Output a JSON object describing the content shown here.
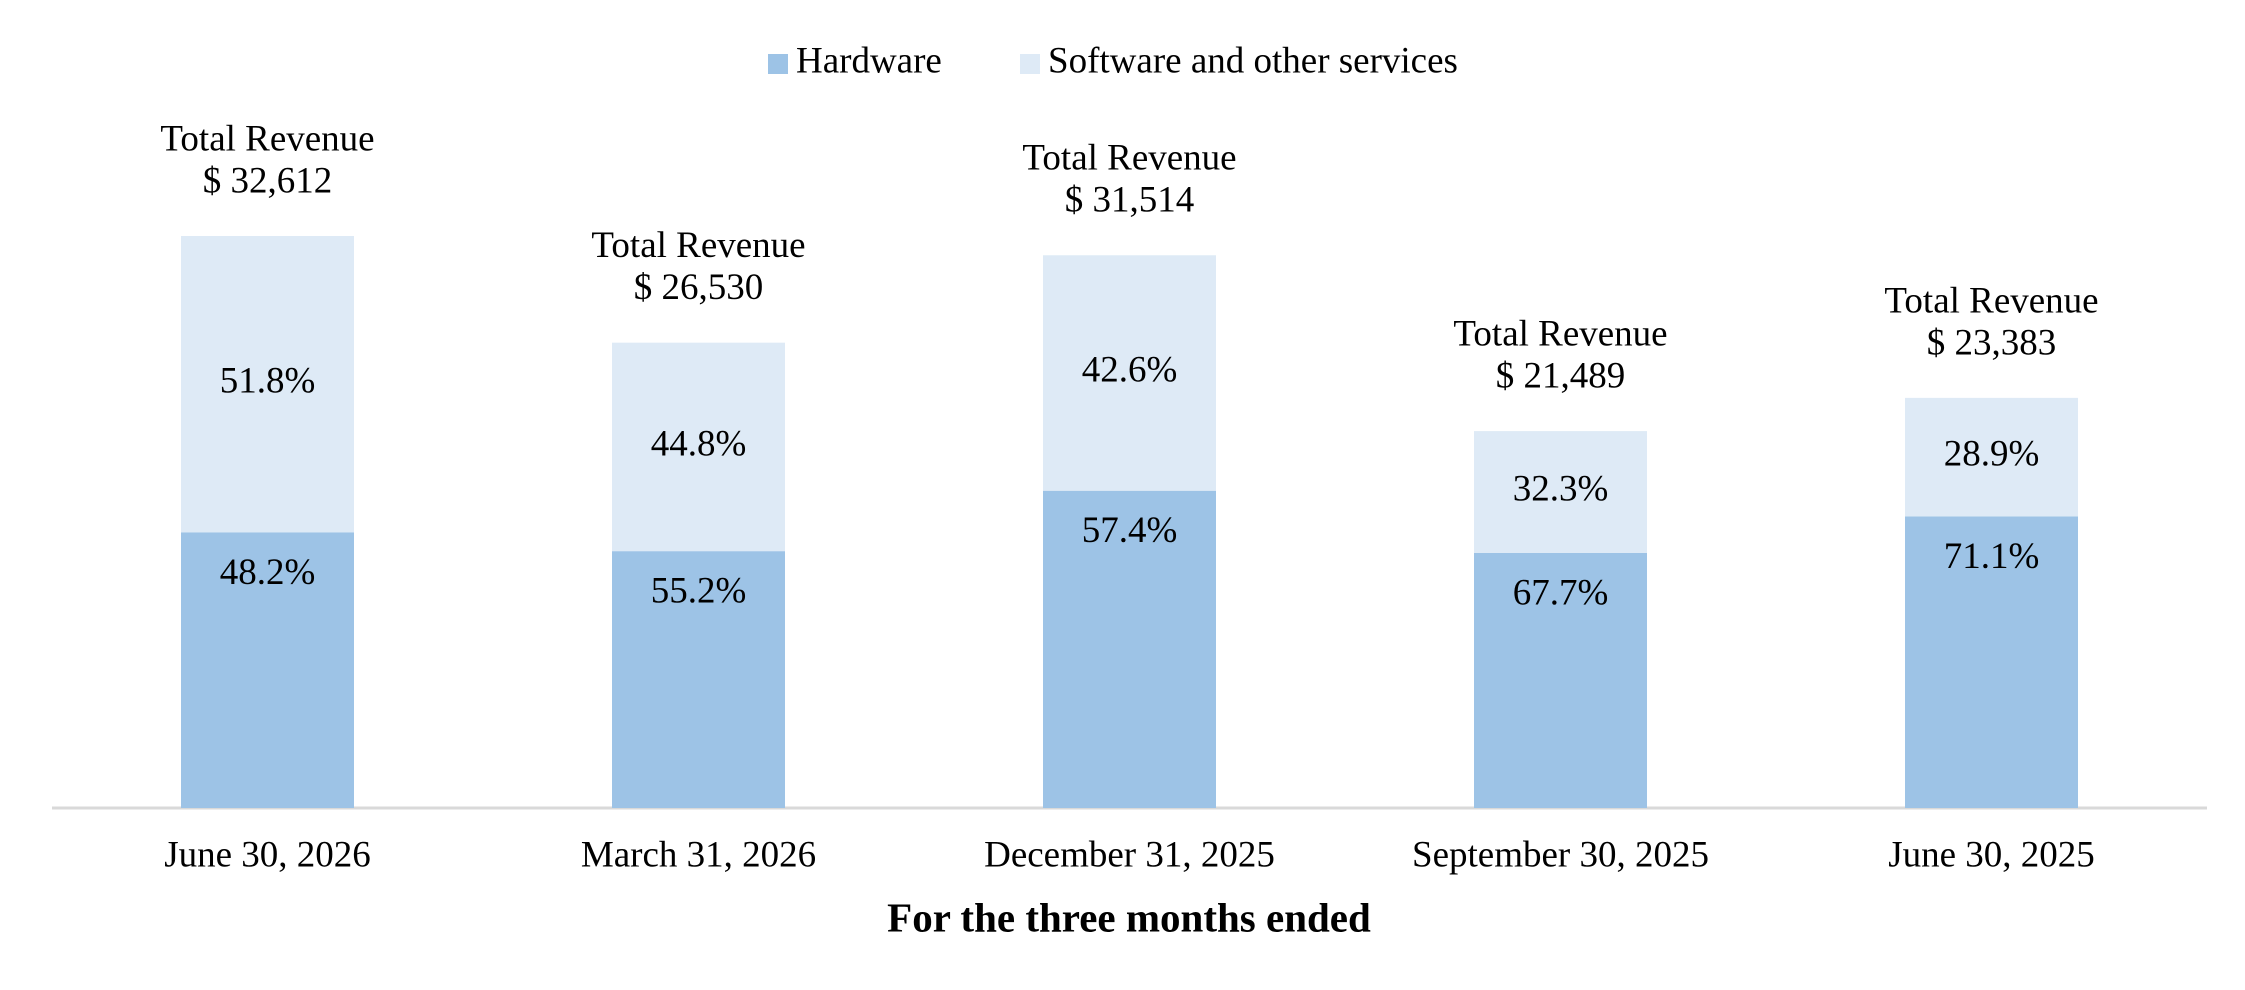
{
  "chart_data": {
    "type": "bar",
    "stacked": true,
    "x_label": "For the three months ended",
    "categories": [
      "June 30, 2026",
      "March 31, 2026",
      "December 31, 2025",
      "September 30, 2025",
      "June 30, 2025"
    ],
    "series": [
      {
        "name": "Hardware",
        "color": "#9dc3e6",
        "values": [
          48.2,
          55.2,
          57.4,
          67.7,
          71.1
        ],
        "value_labels": [
          "48.2%",
          "55.2%",
          "57.4%",
          "67.7%",
          "71.1%"
        ]
      },
      {
        "name": "Software and other services",
        "color": "#deeaf6",
        "values": [
          51.8,
          44.8,
          42.6,
          32.3,
          28.9
        ],
        "value_labels": [
          "51.8%",
          "44.8%",
          "42.6%",
          "32.3%",
          "28.9%"
        ]
      }
    ],
    "totals": {
      "name": "Total Revenue",
      "values": [
        32612,
        26530,
        31514,
        21489,
        23383
      ],
      "value_labels": [
        "$ 32,612",
        "$ 26,530",
        "$ 31,514",
        "$ 21,489",
        "$ 23,383"
      ]
    },
    "legend": "top"
  }
}
